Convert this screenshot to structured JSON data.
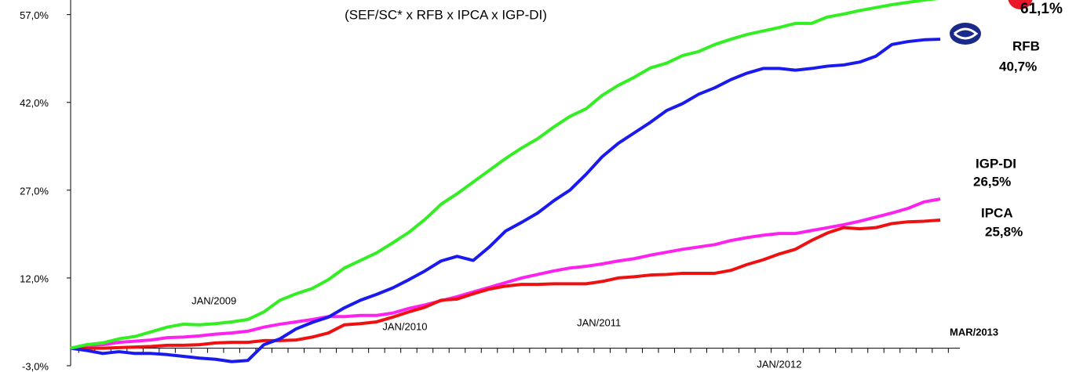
{
  "chart_data": {
    "type": "line",
    "subtitle": "(SEF/SC* x RFB x IPCA x IGP-DI)",
    "categories": [
      null,
      null,
      null,
      null,
      null,
      null,
      null,
      null,
      null,
      "JAN/2009",
      null,
      null,
      null,
      null,
      null,
      null,
      null,
      null,
      null,
      null,
      null,
      "JAN/2010",
      null,
      null,
      null,
      null,
      null,
      null,
      null,
      null,
      null,
      null,
      null,
      "JAN/2011",
      null,
      null,
      null,
      null,
      null,
      null,
      null,
      null,
      null,
      null,
      "JAN/2012",
      null,
      null,
      null,
      null,
      null,
      null,
      null,
      null,
      null,
      "MAR/2013"
    ],
    "series": [
      {
        "color": "#33ee22",
        "values": [
          0,
          0.6,
          0.9,
          1.6,
          2.0,
          2.8,
          3.6,
          4.1,
          4.0,
          4.2,
          4.5,
          4.9,
          6.2,
          8.2,
          9.3,
          10.2,
          11.7,
          13.7,
          15.0,
          16.3,
          18.0,
          19.8,
          22.0,
          24.6,
          26.4,
          28.4,
          30.4,
          32.4,
          34.2,
          35.8,
          37.8,
          39.6,
          40.9,
          43.2,
          44.9,
          46.3,
          47.9,
          48.7,
          50.0,
          50.7,
          51.9,
          52.8,
          53.6,
          54.2,
          54.8,
          55.5,
          55.5,
          56.6,
          57.1,
          57.7,
          58.2,
          58.7,
          59.1,
          59.5,
          59.8
        ]
      },
      {
        "name": "RFB",
        "color": "#1a1aee",
        "values": [
          0,
          -0.4,
          -0.9,
          -0.6,
          -0.9,
          -0.9,
          -1.1,
          -1.4,
          -1.7,
          -1.9,
          -2.3,
          -2.1,
          0.6,
          1.6,
          3.3,
          4.4,
          5.3,
          6.9,
          8.2,
          9.2,
          10.3,
          11.7,
          13.2,
          14.9,
          15.7,
          15.0,
          17.3,
          20.0,
          21.5,
          23.1,
          25.2,
          27.0,
          29.7,
          32.7,
          35.0,
          36.8,
          38.6,
          40.6,
          41.8,
          43.4,
          44.5,
          45.9,
          47.0,
          47.8,
          47.8,
          47.5,
          47.8,
          48.2,
          48.4,
          48.9,
          49.9,
          51.9,
          52.4,
          52.7,
          52.8
        ]
      },
      {
        "name": "IGP-DI",
        "color": "#ee1111",
        "values": [
          0,
          0,
          0,
          0.1,
          0.2,
          0.3,
          0.5,
          0.5,
          0.6,
          0.9,
          1.0,
          1.0,
          1.3,
          1.3,
          1.4,
          1.9,
          2.6,
          4.0,
          4.2,
          4.5,
          5.3,
          6.2,
          7.0,
          8.2,
          8.4,
          9.3,
          10.1,
          10.6,
          10.9,
          10.9,
          11.0,
          11.0,
          11.0,
          11.4,
          12.0,
          12.2,
          12.5,
          12.6,
          12.8,
          12.8,
          12.8,
          13.3,
          14.3,
          15.1,
          16.1,
          16.9,
          18.4,
          19.7,
          20.6,
          20.4,
          20.6,
          21.3,
          21.6,
          21.7,
          21.9
        ]
      },
      {
        "name": "IPCA",
        "color": "#ff22ee",
        "values": [
          0,
          0.5,
          0.6,
          1.0,
          1.2,
          1.4,
          1.8,
          1.9,
          2.1,
          2.4,
          2.6,
          2.9,
          3.6,
          4.1,
          4.5,
          4.9,
          5.4,
          5.4,
          5.6,
          5.6,
          6.0,
          6.8,
          7.4,
          8.1,
          8.8,
          9.6,
          10.4,
          11.2,
          12.0,
          12.6,
          13.2,
          13.7,
          14.0,
          14.4,
          14.9,
          15.3,
          15.9,
          16.4,
          16.9,
          17.3,
          17.7,
          18.4,
          18.9,
          19.3,
          19.6,
          19.6,
          20.1,
          20.6,
          21.1,
          21.7,
          22.4,
          23.1,
          23.9,
          25.0,
          25.5
        ]
      }
    ],
    "annotations": [
      "61,1%",
      "40,7%",
      "26,5%",
      "25,8%"
    ],
    "ylim": [
      -3,
      59.5
    ],
    "yticks": [
      {
        "value": -3,
        "label": "-3,0%"
      },
      {
        "value": 12,
        "label": "12,0%"
      },
      {
        "value": 27,
        "label": "27,0%"
      },
      {
        "value": 42,
        "label": "42,0%"
      },
      {
        "value": 57,
        "label": "57,0%"
      }
    ]
  }
}
